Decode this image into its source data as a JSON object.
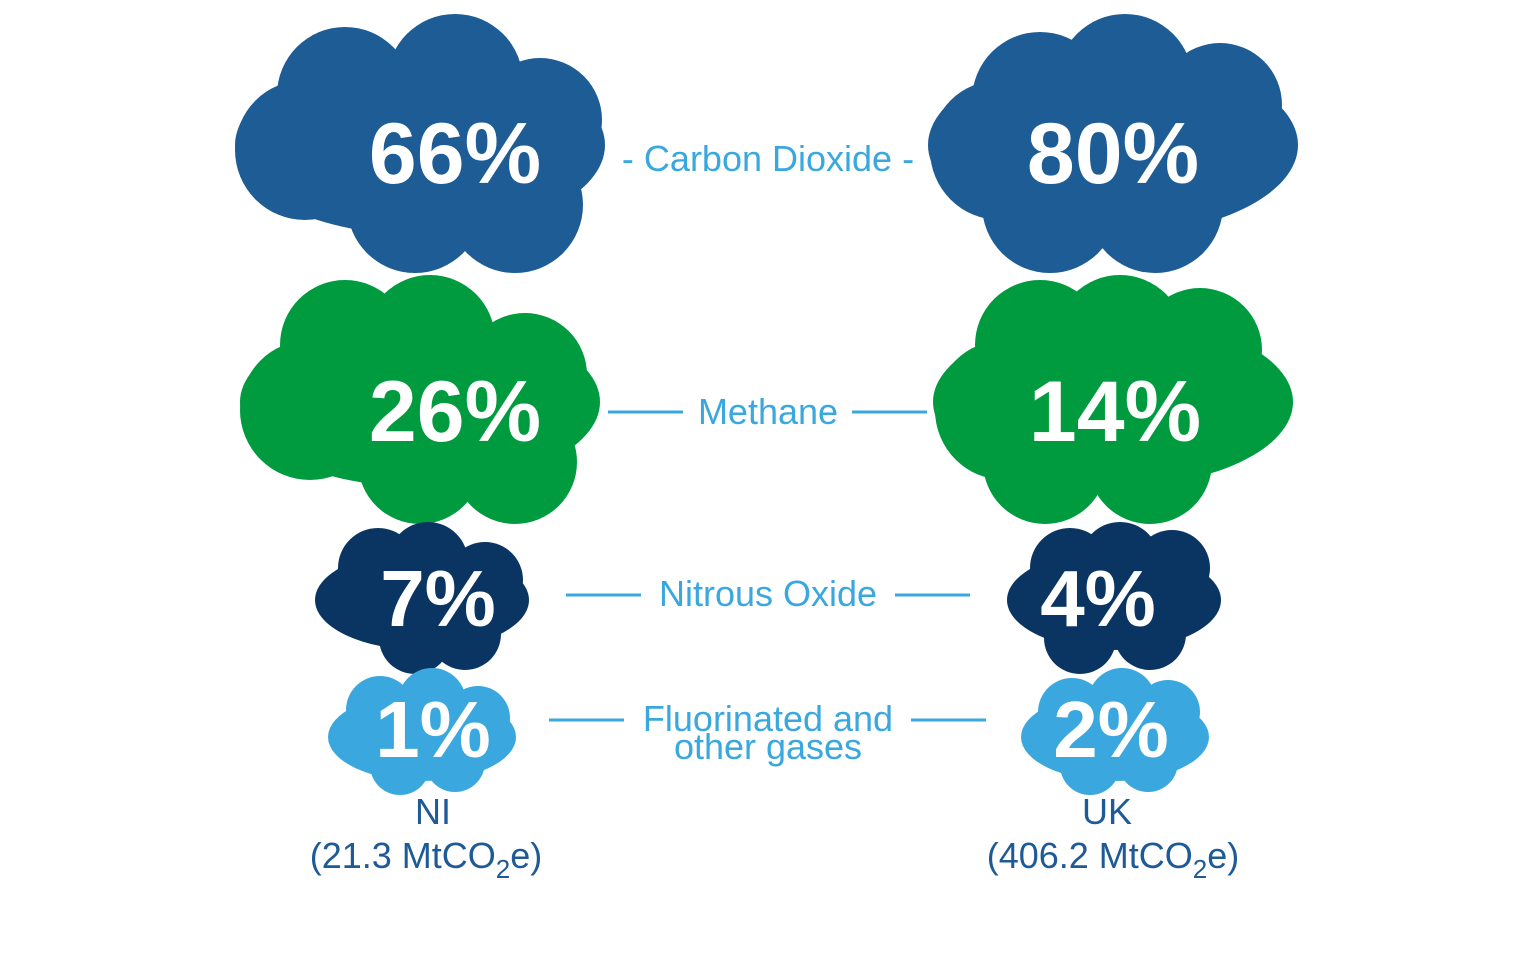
{
  "colors": {
    "carbon_dioxide": "#1e5c96",
    "methane": "#009b3e",
    "nitrous_oxide": "#0a3562",
    "fluorinated": "#3aa8de",
    "label_text": "#3aa8de",
    "region_text": "#1e5a96"
  },
  "gases": [
    {
      "name": "Carbon Dioxide",
      "ni": "66%",
      "uk": "80%",
      "ni_value": 66,
      "uk_value": 80
    },
    {
      "name": "Methane",
      "ni": "26%",
      "uk": "14%",
      "ni_value": 26,
      "uk_value": 14
    },
    {
      "name": "Nitrous Oxide",
      "ni": "7%",
      "uk": "4%",
      "ni_value": 7,
      "uk_value": 4
    },
    {
      "name_line1": "Fluorinated and",
      "name_line2": "other gases",
      "ni": "1%",
      "uk": "2%",
      "ni_value": 1,
      "uk_value": 2
    }
  ],
  "regions": {
    "ni": {
      "name": "NI",
      "emissions_prefix": "(21.3 MtCO",
      "subscript": "2",
      "emissions_suffix": "e)"
    },
    "uk": {
      "name": "UK",
      "emissions_prefix": "(406.2 MtCO",
      "subscript": "2",
      "emissions_suffix": "e)"
    }
  }
}
